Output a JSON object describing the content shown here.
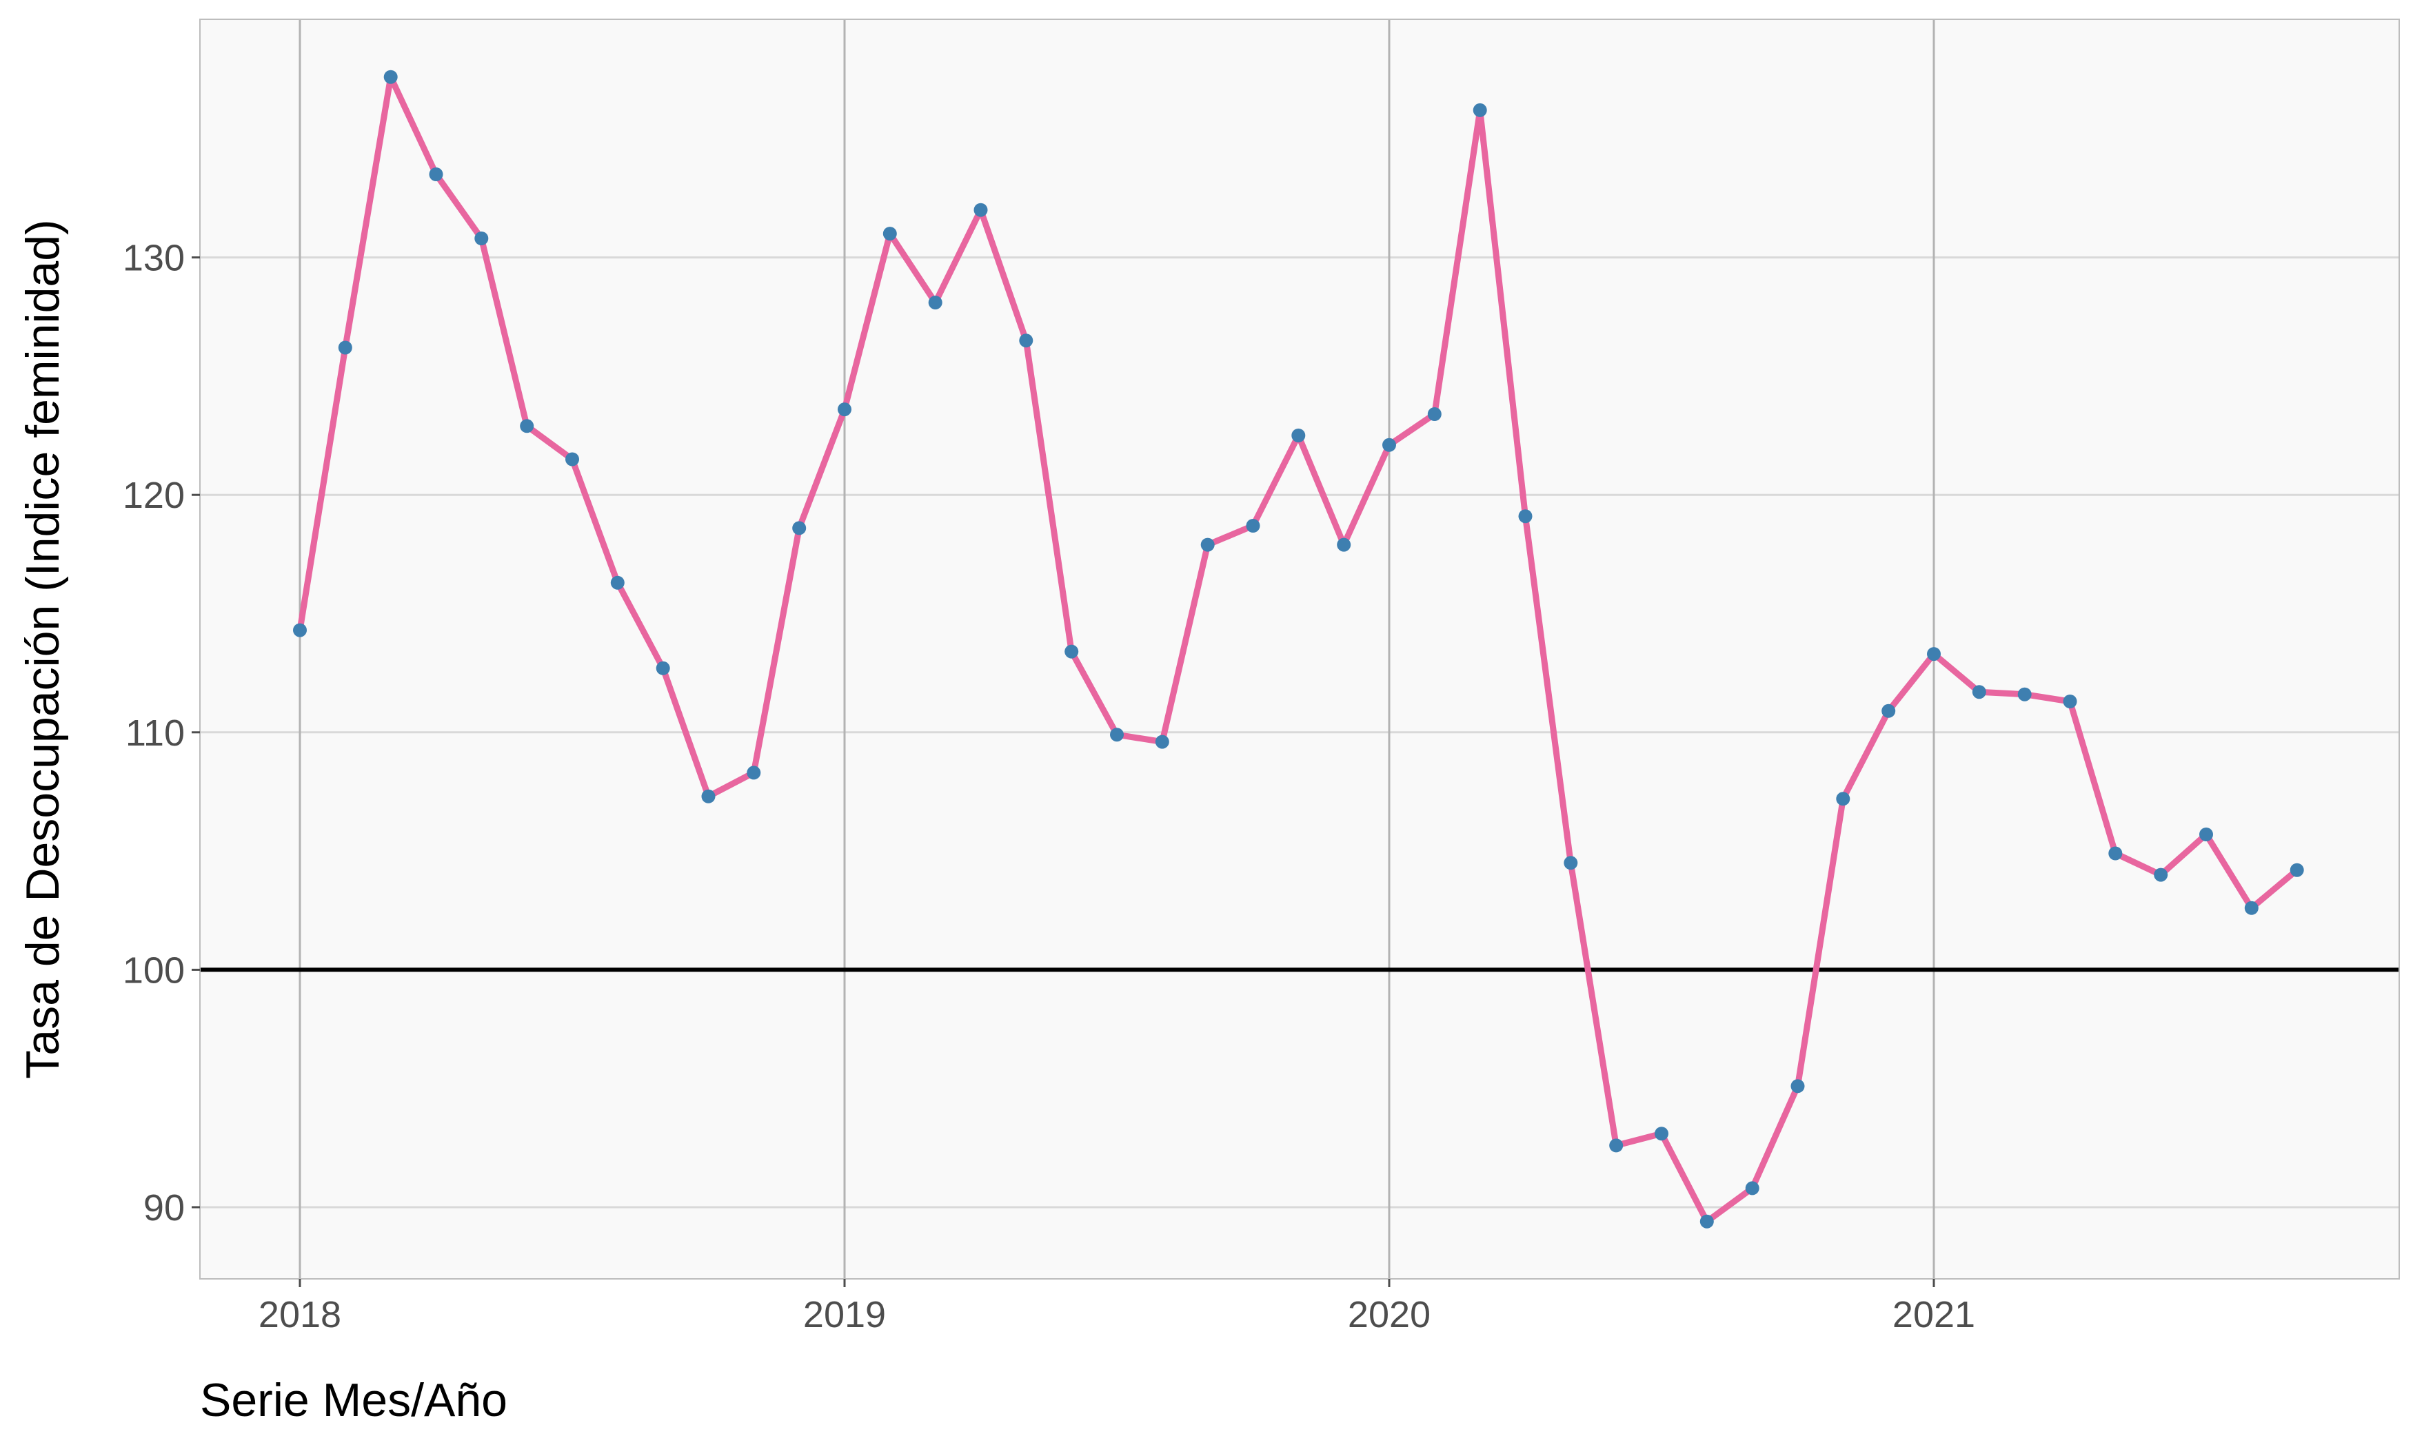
{
  "chart_data": {
    "type": "line",
    "title": "",
    "xlabel": "Serie Mes/Año",
    "ylabel": "Tasa de Desocupación (Indice feminidad)",
    "x_ticks": [
      "2018",
      "2019",
      "2020",
      "2021"
    ],
    "y_ticks": [
      90,
      100,
      110,
      120,
      130
    ],
    "ylim": [
      87,
      140
    ],
    "reference_line": 100,
    "grid": true,
    "x": [
      "2018-01",
      "2018-02",
      "2018-03",
      "2018-04",
      "2018-05",
      "2018-06",
      "2018-07",
      "2018-08",
      "2018-09",
      "2018-10",
      "2018-11",
      "2018-12",
      "2019-01",
      "2019-02",
      "2019-03",
      "2019-04",
      "2019-05",
      "2019-06",
      "2019-07",
      "2019-08",
      "2019-09",
      "2019-10",
      "2019-11",
      "2019-12",
      "2020-01",
      "2020-02",
      "2020-03",
      "2020-04",
      "2020-05",
      "2020-06",
      "2020-07",
      "2020-08",
      "2020-09",
      "2020-10",
      "2020-11",
      "2020-12",
      "2021-01",
      "2021-02",
      "2021-03",
      "2021-04",
      "2021-05",
      "2021-06",
      "2021-07",
      "2021-08",
      "2021-09"
    ],
    "series": [
      {
        "values": [
          114.3,
          126.2,
          137.6,
          133.5,
          130.8,
          122.9,
          121.5,
          116.3,
          112.7,
          107.3,
          108.3,
          118.6,
          123.6,
          131.0,
          128.1,
          132.0,
          126.5,
          113.4,
          109.9,
          109.6,
          117.9,
          118.7,
          122.5,
          117.9,
          122.1,
          123.4,
          136.2,
          119.1,
          104.5,
          92.6,
          93.1,
          89.4,
          90.8,
          95.1,
          107.2,
          110.9,
          113.3,
          111.7,
          111.6,
          111.3,
          104.9,
          104.0,
          105.7,
          102.6,
          104.2
        ],
        "line_color": "#e8669f",
        "point_color": "#3e7fb0"
      }
    ],
    "colors": {
      "panel_background": "#f9f9f9",
      "grid": "#d9d9d9",
      "vertical_grid": "#b3b3b3",
      "reference_line": "#000000",
      "panel_border": "#bdbdbd"
    }
  }
}
